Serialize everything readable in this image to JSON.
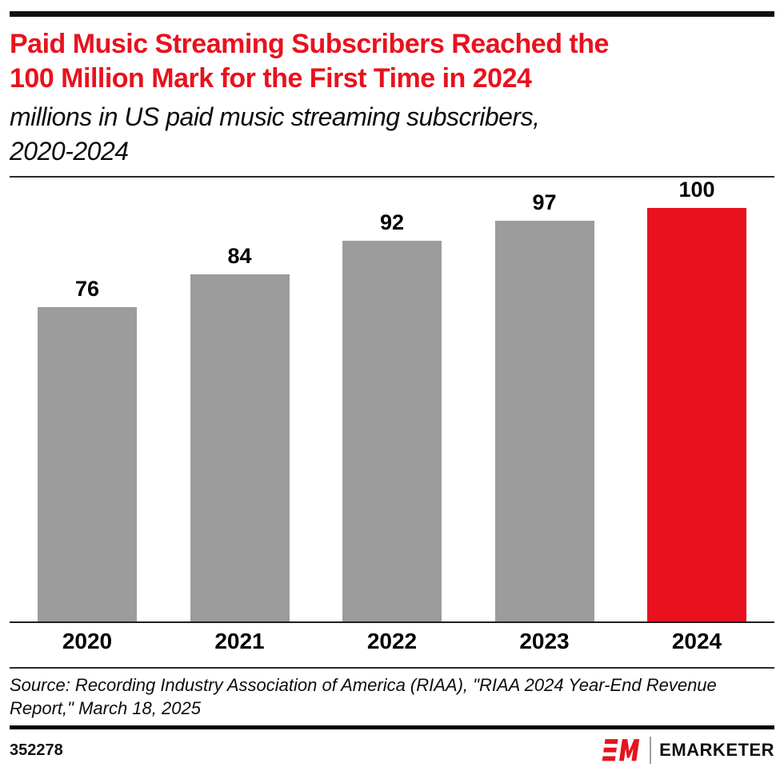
{
  "header": {
    "title_lines": [
      "Paid Music Streaming Subscribers Reached the",
      "100 Million Mark for the First Time in 2024"
    ],
    "subtitle_lines": [
      "millions in US paid music streaming subscribers,",
      "2020-2024"
    ]
  },
  "chart_data": {
    "type": "bar",
    "title": "Paid Music Streaming Subscribers Reached the 100 Million Mark for the First Time in 2024",
    "subtitle": "millions in US paid music streaming subscribers, 2020-2024",
    "categories": [
      "2020",
      "2021",
      "2022",
      "2023",
      "2024"
    ],
    "values": [
      76,
      84,
      92,
      97,
      100
    ],
    "unit": "millions",
    "xlabel": "",
    "ylabel": "US paid music streaming subscribers (millions)",
    "ylim": [
      0,
      100
    ],
    "grid": false,
    "legend": "none",
    "value_labels": true,
    "highlight_index": 4,
    "bar_color": "#9C9C9C",
    "highlight_color": "#E8121E"
  },
  "source": {
    "lines": [
      "Source: Recording Industry Association of America (RIAA), \"RIAA 2024 Year-End Revenue",
      "Report,\" March 18, 2025"
    ]
  },
  "footer": {
    "chart_id": "352278",
    "brand": "EMARKETER"
  },
  "colors": {
    "accent_red": "#E8121E",
    "bar_gray": "#9C9C9C",
    "text_black": "#000000"
  }
}
